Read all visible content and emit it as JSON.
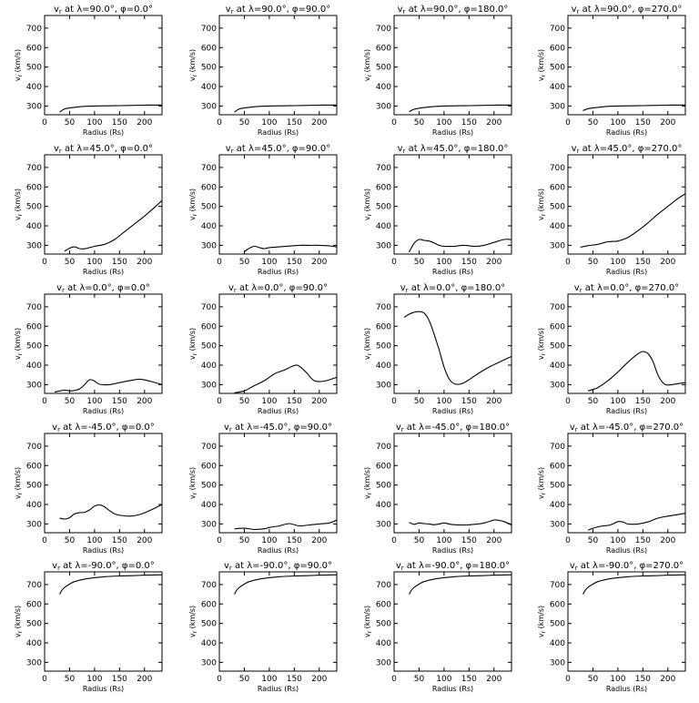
{
  "figure": {
    "xlabel": "Radius (Rs)",
    "ylabel": "v_r (km/s)",
    "x_ticks": [
      0,
      50,
      100,
      150,
      200
    ],
    "y_ticks": [
      300,
      400,
      500,
      600,
      700
    ],
    "xlim": [
      0,
      235
    ],
    "ylim": [
      255,
      765
    ]
  },
  "chart_data": [
    {
      "type": "line",
      "title": "vr at λ=90.0°, φ=0.0°",
      "lat": "90.0",
      "lon": "0.0",
      "x": [
        30,
        40,
        60,
        80,
        100,
        150,
        200,
        235
      ],
      "values": [
        268,
        285,
        293,
        298,
        300,
        302,
        304,
        305
      ]
    },
    {
      "type": "line",
      "title": "vr at λ=90.0°, φ=90.0°",
      "lat": "90.0",
      "lon": "90.0",
      "x": [
        30,
        40,
        60,
        80,
        100,
        150,
        200,
        235
      ],
      "values": [
        268,
        285,
        293,
        298,
        300,
        302,
        304,
        305
      ]
    },
    {
      "type": "line",
      "title": "vr at λ=90.0°, φ=180.0°",
      "lat": "90.0",
      "lon": "180.0",
      "x": [
        30,
        40,
        60,
        80,
        100,
        150,
        200,
        235
      ],
      "values": [
        270,
        283,
        292,
        297,
        300,
        302,
        304,
        305
      ]
    },
    {
      "type": "line",
      "title": "vr at λ=90.0°, φ=270.0°",
      "lat": "90.0",
      "lon": "270.0",
      "x": [
        30,
        40,
        60,
        80,
        100,
        150,
        200,
        235
      ],
      "values": [
        276,
        286,
        293,
        298,
        300,
        302,
        304,
        305
      ]
    },
    {
      "type": "line",
      "title": "vr at λ=45.0°, φ=0.0°",
      "lat": "45.0",
      "lon": "0.0",
      "x": [
        40,
        50,
        60,
        70,
        80,
        90,
        100,
        120,
        140,
        160,
        180,
        200,
        220,
        235
      ],
      "values": [
        270,
        285,
        292,
        283,
        282,
        288,
        295,
        305,
        330,
        370,
        410,
        450,
        495,
        530
      ]
    },
    {
      "type": "line",
      "title": "vr at λ=45.0°, φ=90.0°",
      "lat": "45.0",
      "lon": "90.0",
      "x": [
        50,
        60,
        70,
        80,
        90,
        100,
        120,
        140,
        160,
        180,
        200,
        220,
        235
      ],
      "values": [
        268,
        285,
        295,
        288,
        283,
        288,
        292,
        296,
        300,
        300,
        300,
        297,
        292
      ]
    },
    {
      "type": "line",
      "title": "vr at λ=45.0°, φ=180.0°",
      "lat": "45.0",
      "lon": "180.0",
      "x": [
        30,
        40,
        50,
        60,
        70,
        80,
        90,
        100,
        120,
        140,
        160,
        180,
        200,
        220,
        235
      ],
      "values": [
        265,
        310,
        330,
        325,
        322,
        312,
        300,
        295,
        295,
        300,
        295,
        300,
        315,
        330,
        330
      ]
    },
    {
      "type": "line",
      "title": "vr at λ=45.0°, φ=270.0°",
      "lat": "45.0",
      "lon": "270.0",
      "x": [
        25,
        40,
        60,
        70,
        80,
        90,
        100,
        120,
        140,
        160,
        180,
        200,
        220,
        235
      ],
      "values": [
        290,
        298,
        305,
        312,
        318,
        320,
        322,
        340,
        375,
        415,
        460,
        500,
        540,
        565
      ]
    },
    {
      "type": "line",
      "title": "vr at λ=0.0°, φ=0.0°",
      "lat": "0.0",
      "lon": "0.0",
      "x": [
        20,
        40,
        50,
        60,
        70,
        80,
        90,
        100,
        110,
        130,
        150,
        170,
        190,
        210,
        235
      ],
      "values": [
        262,
        272,
        268,
        270,
        278,
        300,
        325,
        318,
        302,
        300,
        310,
        320,
        328,
        318,
        300
      ]
    },
    {
      "type": "line",
      "title": "vr at λ=0.0°, φ=90.0°",
      "lat": "0.0",
      "lon": "90.0",
      "x": [
        30,
        50,
        70,
        90,
        110,
        130,
        150,
        160,
        175,
        190,
        210,
        235
      ],
      "values": [
        258,
        268,
        295,
        320,
        355,
        375,
        398,
        395,
        360,
        320,
        318,
        338
      ]
    },
    {
      "type": "line",
      "title": "vr at λ=0.0°, φ=180.0°",
      "lat": "0.0",
      "lon": "180.0",
      "x": [
        20,
        30,
        40,
        50,
        60,
        70,
        80,
        90,
        100,
        110,
        120,
        130,
        140,
        150,
        170,
        190,
        210,
        235
      ],
      "values": [
        645,
        662,
        672,
        675,
        668,
        630,
        560,
        480,
        390,
        330,
        305,
        302,
        310,
        325,
        360,
        390,
        415,
        445
      ]
    },
    {
      "type": "line",
      "title": "vr at λ=0.0°, φ=270.0°",
      "lat": "0.0",
      "lon": "270.0",
      "x": [
        40,
        50,
        60,
        80,
        100,
        120,
        140,
        150,
        160,
        170,
        180,
        190,
        200,
        220,
        235
      ],
      "values": [
        268,
        275,
        285,
        320,
        365,
        415,
        458,
        470,
        460,
        420,
        350,
        310,
        298,
        305,
        310
      ]
    },
    {
      "type": "line",
      "title": "vr at λ=-45.0°, φ=0.0°",
      "lat": "-45.0",
      "lon": "0.0",
      "x": [
        30,
        40,
        50,
        60,
        70,
        80,
        90,
        100,
        110,
        120,
        130,
        140,
        150,
        170,
        190,
        210,
        235
      ],
      "values": [
        330,
        325,
        332,
        352,
        358,
        360,
        372,
        392,
        398,
        388,
        368,
        352,
        345,
        340,
        348,
        368,
        400
      ]
    },
    {
      "type": "line",
      "title": "vr at λ=-45.0°, φ=90.0°",
      "lat": "-45.0",
      "lon": "90.0",
      "x": [
        30,
        50,
        70,
        90,
        100,
        120,
        140,
        160,
        180,
        200,
        220,
        235
      ],
      "values": [
        275,
        278,
        272,
        275,
        282,
        290,
        302,
        290,
        295,
        300,
        305,
        320
      ]
    },
    {
      "type": "line",
      "title": "vr at λ=-45.0°, φ=180.0°",
      "lat": "-45.0",
      "lon": "180.0",
      "x": [
        30,
        40,
        50,
        60,
        70,
        80,
        90,
        100,
        110,
        120,
        140,
        160,
        180,
        200,
        210,
        220,
        235
      ],
      "values": [
        308,
        298,
        305,
        302,
        300,
        296,
        300,
        305,
        300,
        296,
        295,
        298,
        305,
        320,
        318,
        312,
        295
      ]
    },
    {
      "type": "line",
      "title": "vr at λ=-45.0°, φ=270.0°",
      "lat": "-45.0",
      "lon": "270.0",
      "x": [
        40,
        50,
        60,
        70,
        80,
        90,
        100,
        110,
        120,
        140,
        160,
        180,
        200,
        220,
        235
      ],
      "values": [
        268,
        278,
        285,
        290,
        292,
        300,
        312,
        310,
        300,
        300,
        310,
        330,
        340,
        348,
        355
      ]
    },
    {
      "type": "line",
      "title": "vr at λ=-90.0°, φ=0.0°",
      "lat": "-90.0",
      "lon": "0.0",
      "x": [
        30,
        35,
        40,
        50,
        60,
        80,
        100,
        120,
        150,
        180,
        200,
        235
      ],
      "values": [
        650,
        672,
        685,
        702,
        715,
        728,
        735,
        740,
        744,
        746,
        748,
        750
      ]
    },
    {
      "type": "line",
      "title": "vr at λ=-90.0°, φ=90.0°",
      "lat": "-90.0",
      "lon": "90.0",
      "x": [
        30,
        35,
        40,
        50,
        60,
        80,
        100,
        120,
        150,
        180,
        200,
        235
      ],
      "values": [
        650,
        672,
        685,
        702,
        715,
        728,
        735,
        740,
        744,
        746,
        748,
        750
      ]
    },
    {
      "type": "line",
      "title": "vr at λ=-90.0°, φ=180.0°",
      "lat": "-90.0",
      "lon": "180.0",
      "x": [
        30,
        35,
        40,
        50,
        60,
        80,
        100,
        120,
        150,
        180,
        200,
        235
      ],
      "values": [
        650,
        672,
        685,
        702,
        715,
        728,
        735,
        740,
        744,
        746,
        748,
        750
      ]
    },
    {
      "type": "line",
      "title": "vr at λ=-90.0°, φ=270.0°",
      "lat": "-90.0",
      "lon": "270.0",
      "x": [
        30,
        35,
        40,
        50,
        60,
        80,
        100,
        120,
        150,
        180,
        200,
        235
      ],
      "values": [
        650,
        672,
        685,
        702,
        715,
        728,
        735,
        740,
        744,
        746,
        748,
        750
      ]
    }
  ]
}
